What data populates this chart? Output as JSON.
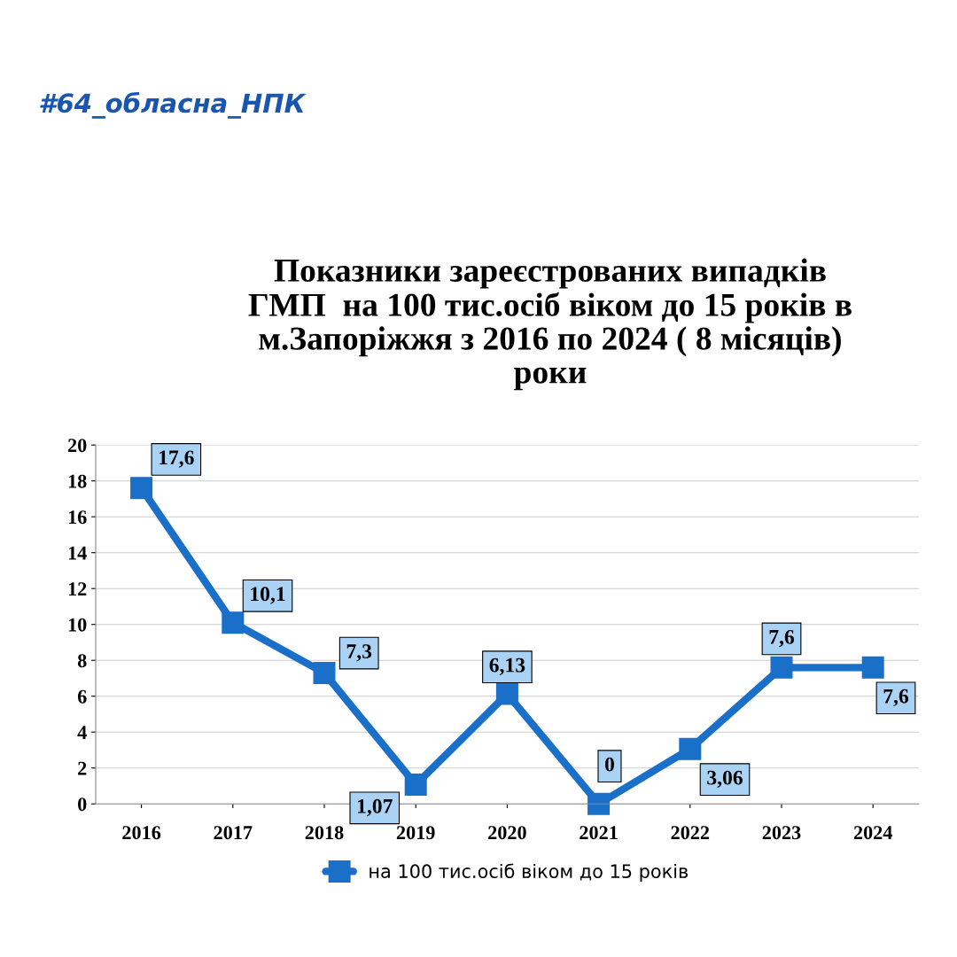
{
  "chart_data": {
    "type": "line",
    "title": "Показники зареєстрованих випадків\nГМП  на 100 тис.осіб віком до 15 років в\nм.Запоріжжя з 2016 по 2024 ( 8 місяців)\nроки",
    "annotations": [
      "#64_обласна_НПК"
    ],
    "categories": [
      "2016",
      "2017",
      "2018",
      "2019",
      "2020",
      "2021",
      "2022",
      "2023",
      "2024"
    ],
    "series": [
      {
        "name": "на 100 тис.осіб віком до 15 років",
        "color": "#1a6fc9",
        "values": [
          17.6,
          10.1,
          7.3,
          1.07,
          6.13,
          0,
          3.06,
          7.6,
          7.6
        ],
        "value_labels": [
          "17,6",
          "10,1",
          "7,3",
          "1,07",
          "6,13",
          "0",
          "3,06",
          "7,6",
          "7,6"
        ]
      }
    ],
    "ylim": [
      0,
      20
    ],
    "yticks": [
      0,
      2,
      4,
      6,
      8,
      10,
      12,
      14,
      16,
      18,
      20
    ],
    "grid": "y",
    "legend": "bottom",
    "marker": "square",
    "line_style": "solid"
  }
}
